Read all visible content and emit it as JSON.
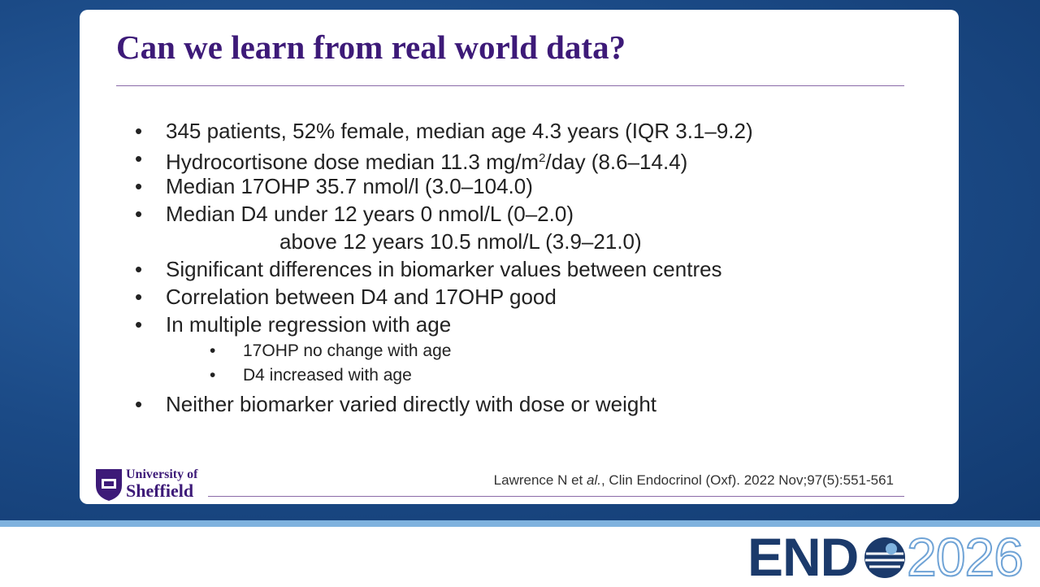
{
  "slide": {
    "title": "Can we learn from real world data?",
    "bullets": [
      "345 patients, 52% female, median age 4.3 years (IQR 3.1–9.2)",
      {
        "parts": [
          "Hydrocortisone dose median 11.3 mg/m",
          "2",
          "/day (8.6–14.4)"
        ]
      },
      "Median 17OHP 35.7 nmol/l (3.0–104.0)",
      {
        "text": "Median D4 under 12 years 0 nmol/L (0–2.0)",
        "continuation": "above 12 years 10.5 nmol/L (3.9–21.0)"
      },
      "Significant differences in biomarker values between centres",
      "Correlation between D4 and 17OHP good",
      {
        "text": "In multiple regression with age",
        "sub": [
          "17OHP no change with age",
          "D4 increased with age"
        ]
      },
      "Neither biomarker varied directly with dose or weight"
    ],
    "logo": [
      "University of",
      "Sheffield"
    ],
    "citation": [
      "Lawrence N et ",
      "al.",
      ", Clin Endocrinol (Oxf). 2022 Nov;97(5):551-561"
    ]
  },
  "footer": {
    "brand": [
      "END",
      "2026"
    ]
  }
}
